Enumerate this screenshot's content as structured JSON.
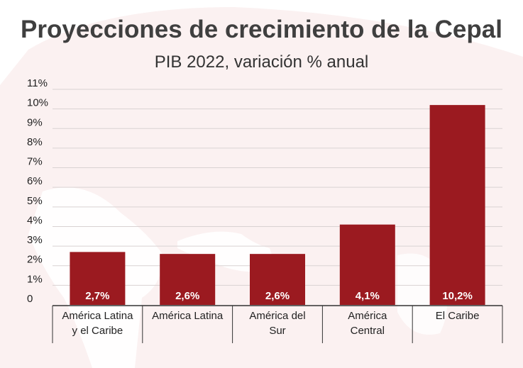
{
  "chart_data": {
    "type": "bar",
    "title": "Proyecciones de crecimiento de la Cepal",
    "subtitle": "PIB 2022, variación % anual",
    "categories": [
      [
        "América Latina",
        "y el Caribe"
      ],
      [
        "América Latina"
      ],
      [
        "América del",
        "Sur"
      ],
      [
        "América",
        "Central"
      ],
      [
        "El Caribe"
      ]
    ],
    "values": [
      2.7,
      2.6,
      2.6,
      4.1,
      10.2
    ],
    "data_labels": [
      "2,7%",
      "2,6%",
      "2,6%",
      "4,1%",
      "10,2%"
    ],
    "y_ticks": [
      "0",
      "1%",
      "2%",
      "3%",
      "4%",
      "5%",
      "6%",
      "7%",
      "8%",
      "9%",
      "10%",
      "11%"
    ],
    "ylim": [
      0,
      11
    ],
    "grid": true,
    "bar_color": "#9b1a20"
  }
}
